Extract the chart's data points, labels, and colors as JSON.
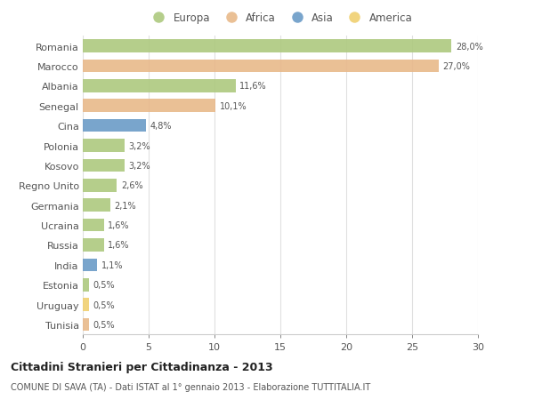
{
  "countries": [
    "Romania",
    "Marocco",
    "Albania",
    "Senegal",
    "Cina",
    "Polonia",
    "Kosovo",
    "Regno Unito",
    "Germania",
    "Ucraina",
    "Russia",
    "India",
    "Estonia",
    "Uruguay",
    "Tunisia"
  ],
  "values": [
    28.0,
    27.0,
    11.6,
    10.1,
    4.8,
    3.2,
    3.2,
    2.6,
    2.1,
    1.6,
    1.6,
    1.1,
    0.5,
    0.5,
    0.5
  ],
  "labels": [
    "28,0%",
    "27,0%",
    "11,6%",
    "10,1%",
    "4,8%",
    "3,2%",
    "3,2%",
    "2,6%",
    "2,1%",
    "1,6%",
    "1,6%",
    "1,1%",
    "0,5%",
    "0,5%",
    "0,5%"
  ],
  "continents": [
    "Europa",
    "Africa",
    "Europa",
    "Africa",
    "Asia",
    "Europa",
    "Europa",
    "Europa",
    "Europa",
    "Europa",
    "Europa",
    "Asia",
    "Europa",
    "America",
    "Africa"
  ],
  "colors": {
    "Europa": "#adc97f",
    "Africa": "#e8b98a",
    "Asia": "#6b9bc7",
    "America": "#f0d070"
  },
  "legend_order": [
    "Europa",
    "Africa",
    "Asia",
    "America"
  ],
  "title": "Cittadini Stranieri per Cittadinanza - 2013",
  "subtitle": "COMUNE DI SAVA (TA) - Dati ISTAT al 1° gennaio 2013 - Elaborazione TUTTITALIA.IT",
  "xlim": [
    0,
    30
  ],
  "xticks": [
    0,
    5,
    10,
    15,
    20,
    25,
    30
  ],
  "bg_color": "#ffffff",
  "grid_color": "#e0e0e0",
  "bar_height": 0.65
}
